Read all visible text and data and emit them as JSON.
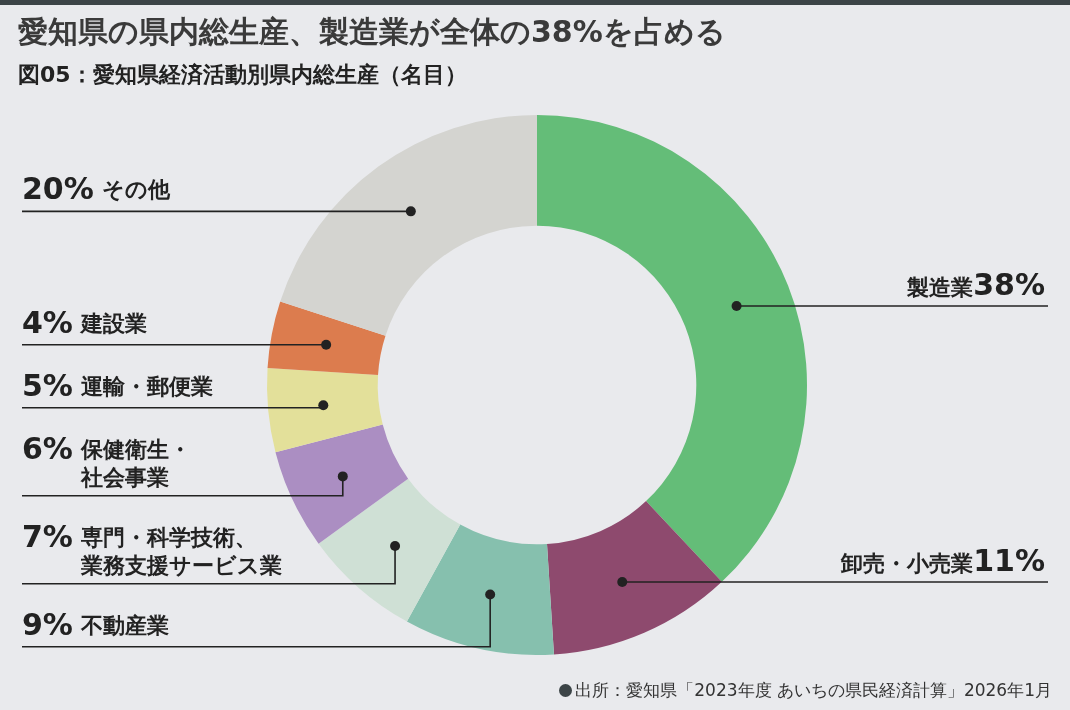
{
  "chart_data": {
    "type": "donut",
    "title": "愛知県の県内総生産、製造業が全体の38%を占める",
    "subtitle": "図05：愛知県経済活動別県内総生産（名目）",
    "categories": [
      "製造業",
      "卸売・小売業",
      "不動産業",
      "専門・科学技術、業務支援サービス業",
      "保健衛生・社会事業",
      "運輸・郵便業",
      "建設業",
      "その他"
    ],
    "values": [
      38,
      11,
      9,
      7,
      6,
      5,
      4,
      20
    ],
    "colors": [
      "#64bd78",
      "#8e4a6e",
      "#86c0ae",
      "#cfe0d5",
      "#ab8ec2",
      "#e3e09a",
      "#dc7c4e",
      "#d4d4d0"
    ],
    "value_labels": [
      "38%",
      "11%",
      "9%",
      "7%",
      "6%",
      "5%",
      "4%",
      "20%"
    ],
    "annotations": [
      "出所：愛知県「2023年度 あいちの県民経済計算」2026年1月"
    ]
  }
}
